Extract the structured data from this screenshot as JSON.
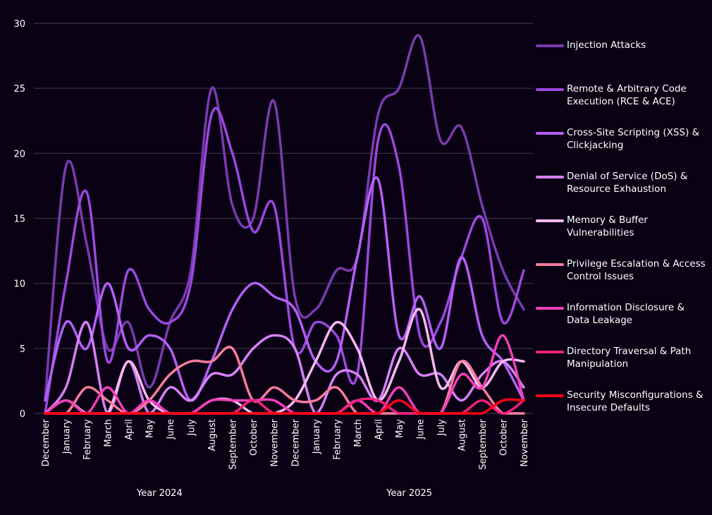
{
  "chart_data": {
    "type": "line",
    "title": "",
    "xlabel": "",
    "ylabel": "",
    "ylim": [
      0,
      30
    ],
    "yticks": [
      0,
      5,
      10,
      15,
      20,
      25,
      30
    ],
    "grid": true,
    "legend_position": "right",
    "categories": [
      "December",
      "January",
      "February",
      "March",
      "April",
      "May",
      "June",
      "July",
      "August",
      "September",
      "October",
      "November",
      "December",
      "January",
      "February",
      "March",
      "April",
      "May",
      "June",
      "July",
      "August",
      "September",
      "October",
      "November"
    ],
    "groups": [
      {
        "label": "Year 2024",
        "from": 0,
        "to": 11
      },
      {
        "label": "Year 2025",
        "from": 12,
        "to": 23
      }
    ],
    "series": [
      {
        "name": "Injection Attacks",
        "color": "#7a3aae",
        "values": [
          1,
          19,
          13,
          5,
          7,
          2,
          7,
          11,
          25,
          16,
          15,
          24,
          9,
          8,
          11,
          12,
          23,
          25,
          29,
          21,
          22,
          16,
          11,
          8
        ]
      },
      {
        "name": "Remote & Arbitrary Code Execution (RCE & ACE)",
        "color": "#9a48de",
        "values": [
          0,
          10,
          17,
          4,
          11,
          8,
          7,
          10,
          23,
          20,
          14,
          16,
          5,
          7,
          6,
          3,
          21,
          19,
          6,
          7,
          12,
          15,
          7,
          11
        ]
      },
      {
        "name": "Cross-Site Scripting (XSS) & Clickjacking",
        "color": "#b35ff7",
        "values": [
          1,
          7,
          5,
          10,
          5,
          6,
          5,
          1,
          4,
          8,
          10,
          9,
          8,
          4,
          4,
          12,
          18,
          6,
          9,
          5,
          12,
          6,
          4,
          1
        ]
      },
      {
        "name": "Denial of Service (DoS) & Resource Exhaustion",
        "color": "#d680f7",
        "values": [
          0,
          2,
          7,
          0,
          4,
          0,
          2,
          1,
          3,
          3,
          5,
          6,
          5,
          0,
          3,
          3,
          1,
          5,
          3,
          3,
          1,
          3,
          4,
          2
        ]
      },
      {
        "name": "Memory & Buffer Vulnerabilities",
        "color": "#f8b8f2",
        "values": [
          0,
          1,
          0,
          0,
          4,
          1,
          0,
          0,
          1,
          1,
          0,
          0,
          1,
          4,
          7,
          5,
          1,
          4,
          8,
          2,
          4,
          2,
          4,
          4
        ]
      },
      {
        "name": "Privilege Escalation & Access Control Issues",
        "color": "#f77b9c",
        "values": [
          0,
          0,
          2,
          1,
          0,
          1,
          3,
          4,
          4,
          5,
          1,
          2,
          1,
          1,
          2,
          0,
          0,
          0,
          0,
          0,
          4,
          2,
          0,
          0
        ]
      },
      {
        "name": "Information Disclosure & Data Leakage",
        "color": "#f23fba",
        "values": [
          0,
          1,
          0,
          2,
          0,
          1,
          0,
          0,
          1,
          1,
          1,
          1,
          0,
          0,
          0,
          1,
          0,
          2,
          0,
          0,
          3,
          2,
          6,
          1
        ]
      },
      {
        "name": "Directory Traversal & Path Manipulation",
        "color": "#f2207c",
        "values": [
          0,
          0,
          0,
          0,
          0,
          0,
          0,
          0,
          0,
          0,
          1,
          0,
          0,
          0,
          0,
          1,
          1,
          0,
          0,
          0,
          0,
          1,
          0,
          1
        ]
      },
      {
        "name": "Security Misconfigurations & Insecure Defaults",
        "color": "#ff0014",
        "values": [
          0,
          0,
          0,
          0,
          0,
          0,
          0,
          0,
          0,
          0,
          0,
          0,
          0,
          0,
          0,
          0,
          0,
          1,
          0,
          0,
          0,
          0,
          1,
          1
        ]
      }
    ]
  },
  "legend": {
    "items": [
      {
        "label": "Injection Attacks"
      },
      {
        "label": "Remote & Arbitrary Code Execution (RCE & ACE)"
      },
      {
        "label": "Cross-Site Scripting (XSS) & Clickjacking"
      },
      {
        "label": "Denial of Service (DoS) & Resource Exhaustion"
      },
      {
        "label": "Memory & Buffer Vulnerabilities"
      },
      {
        "label": "Privilege Escalation & Access Control Issues"
      },
      {
        "label": "Information Disclosure & Data Leakage"
      },
      {
        "label": "Directory Traversal & Path Manipulation"
      },
      {
        "label": "Security Misconfigurations & Insecure Defaults"
      }
    ]
  },
  "theme": {
    "background": "#0a0214",
    "grid_color": "#3a3448",
    "text_color": "#ffffff"
  }
}
